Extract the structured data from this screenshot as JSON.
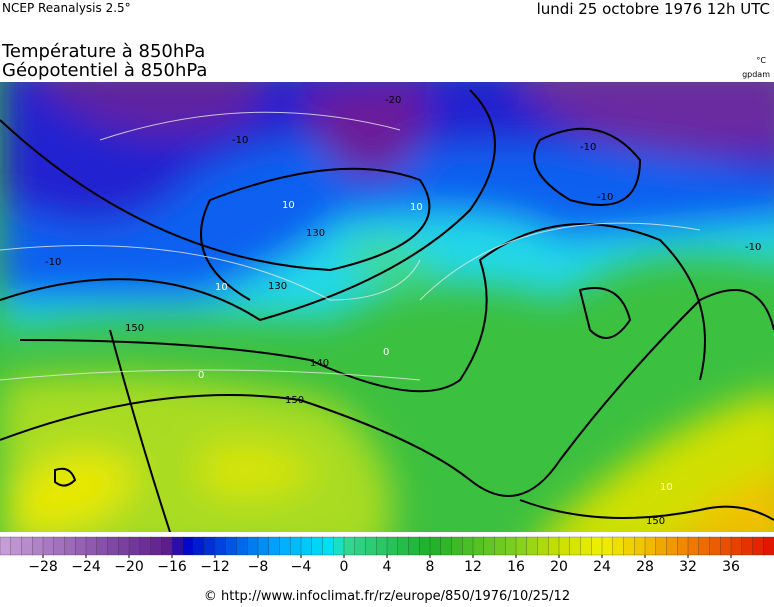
{
  "header": {
    "source": "NCEP Reanalysis 2.5°",
    "date": "lundi 25 octobre 1976 12h UTC"
  },
  "title": {
    "line1": "Température à 850hPa",
    "line2": "Géopotentiel à 850hPa"
  },
  "units": {
    "temperature": "°C",
    "geopotential": "gpdam"
  },
  "map": {
    "contour_labels": [
      "-20",
      "-10",
      "-10",
      "-10",
      "10",
      "10",
      "-10",
      "130",
      "130",
      "140",
      "150",
      "150",
      "150",
      "0",
      "0",
      "10",
      "10",
      "-10"
    ]
  },
  "colorbar": {
    "ticks": [
      {
        "value": -28,
        "label": "−28"
      },
      {
        "value": -24,
        "label": "−24"
      },
      {
        "value": -20,
        "label": "−20"
      },
      {
        "value": -16,
        "label": "−16"
      },
      {
        "value": -12,
        "label": "−12"
      },
      {
        "value": -8,
        "label": "−8"
      },
      {
        "value": -4,
        "label": "−4"
      },
      0,
      4,
      8,
      12,
      16,
      20,
      24,
      28,
      32,
      36
    ]
  },
  "footer": "© http://www.infoclimat.fr/rz/europe/850/1976/10/25/12"
}
